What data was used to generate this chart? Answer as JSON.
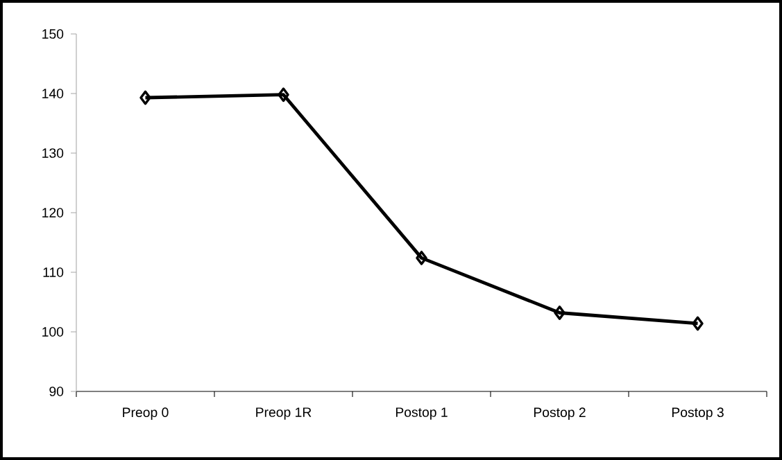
{
  "chart_data": {
    "type": "line",
    "categories": [
      "Preop 0",
      "Preop 1R",
      "Postop 1",
      "Postop 2",
      "Postop 3"
    ],
    "series": [
      {
        "color": "#000000",
        "values": [
          139.3,
          139.8,
          112.4,
          103.2,
          101.4
        ]
      }
    ],
    "ylim": [
      90,
      150
    ],
    "yticks": [
      90,
      100,
      110,
      120,
      130,
      140,
      150
    ],
    "marker": "diamond"
  }
}
